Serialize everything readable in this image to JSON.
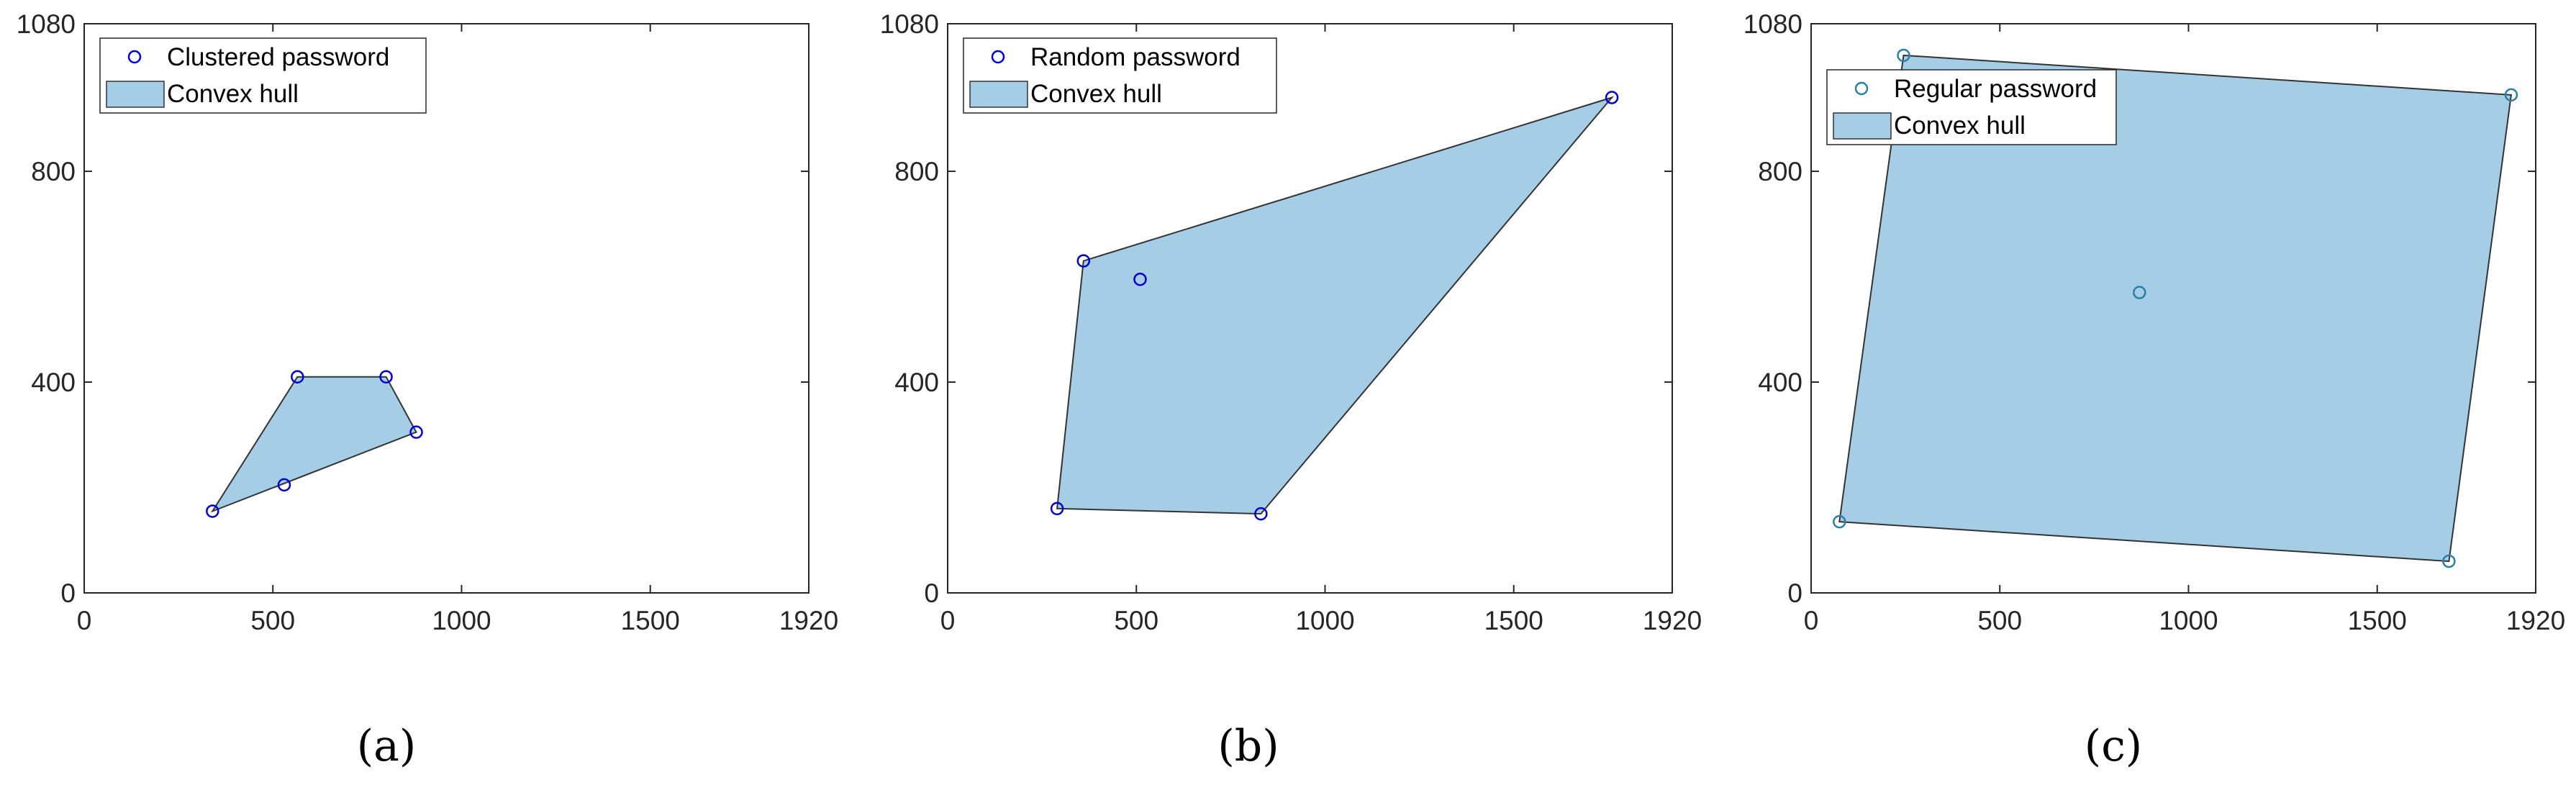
{
  "chart_data": [
    {
      "type": "scatter",
      "caption": "(a)",
      "xlim": [
        0,
        1920
      ],
      "ylim": [
        0,
        1080
      ],
      "xticks": [
        0,
        500,
        1000,
        1500,
        1920
      ],
      "yticks": [
        0,
        400,
        800,
        1080
      ],
      "legend": [
        "Clustered password",
        "Convex hull"
      ],
      "legend_position": "top-left",
      "marker_color": "#0000cc",
      "hull_color": "#a6cde6",
      "points": [
        [
          340,
          155
        ],
        [
          530,
          205
        ],
        [
          565,
          410
        ],
        [
          800,
          410
        ],
        [
          880,
          305
        ]
      ],
      "hull": [
        [
          340,
          155
        ],
        [
          880,
          305
        ],
        [
          800,
          410
        ],
        [
          565,
          410
        ]
      ]
    },
    {
      "type": "scatter",
      "caption": "(b)",
      "xlim": [
        0,
        1920
      ],
      "ylim": [
        0,
        1080
      ],
      "xticks": [
        0,
        500,
        1000,
        1500,
        1920
      ],
      "yticks": [
        0,
        400,
        800,
        1080
      ],
      "legend": [
        "Random password",
        "Convex hull"
      ],
      "legend_position": "top-left",
      "marker_color": "#0000cc",
      "hull_color": "#a6cde6",
      "points": [
        [
          290,
          160
        ],
        [
          830,
          150
        ],
        [
          1760,
          940
        ],
        [
          360,
          630
        ],
        [
          510,
          595
        ]
      ],
      "hull": [
        [
          290,
          160
        ],
        [
          830,
          150
        ],
        [
          1760,
          940
        ],
        [
          360,
          630
        ]
      ]
    },
    {
      "type": "scatter",
      "caption": "(c)",
      "xlim": [
        0,
        1920
      ],
      "ylim": [
        0,
        1080
      ],
      "xticks": [
        0,
        500,
        1000,
        1500,
        1920
      ],
      "yticks": [
        0,
        400,
        800,
        1080
      ],
      "legend": [
        "Regular password",
        "Convex hull"
      ],
      "legend_position": "top-left",
      "marker_color": "#2b7fa6",
      "hull_color": "#a6cde6",
      "points": [
        [
          75,
          135
        ],
        [
          1690,
          60
        ],
        [
          1855,
          945
        ],
        [
          245,
          1020
        ],
        [
          870,
          570
        ]
      ],
      "hull": [
        [
          75,
          135
        ],
        [
          1690,
          60
        ],
        [
          1855,
          945
        ],
        [
          245,
          1020
        ]
      ]
    }
  ]
}
